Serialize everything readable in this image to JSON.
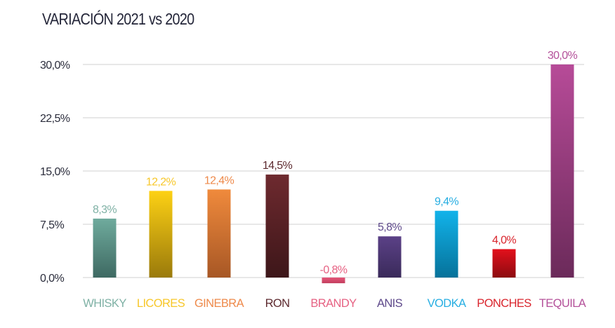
{
  "chart_data": {
    "type": "bar",
    "title": "VARIACIÓN 2021 vs 2020",
    "xlabel": "",
    "ylabel": "",
    "ylim": [
      0,
      30
    ],
    "yticks": [
      0,
      7.5,
      15,
      22.5,
      30
    ],
    "ytick_labels": [
      "0,0%",
      "7,5%",
      "15,0%",
      "22,5%",
      "30,0%"
    ],
    "grid": true,
    "legend": "none",
    "categories": [
      "WHISKY",
      "LICORES",
      "GINEBRA",
      "RON",
      "BRANDY",
      "ANIS",
      "VODKA",
      "PONCHES",
      "TEQUILA"
    ],
    "values": [
      8.3,
      12.2,
      12.4,
      14.5,
      -0.8,
      5.8,
      9.4,
      4.0,
      30.0
    ],
    "data_labels": [
      "8,3%",
      "12,2%",
      "12,4%",
      "14,5%",
      "-0,8%",
      "5,8%",
      "9,4%",
      "4,0%",
      "30,0%"
    ],
    "colors": {
      "top": [
        "#6fab9d",
        "#fdd114",
        "#f08a3c",
        "#6e2a2f",
        "#e5577a",
        "#5b4187",
        "#12b3ea",
        "#e3101c",
        "#b74b98"
      ],
      "bottom": [
        "#3e6962",
        "#9a7a0b",
        "#a75725",
        "#3d1619",
        "#c23c5c",
        "#3a2a5a",
        "#06729a",
        "#8c0b10",
        "#6b2a5a"
      ],
      "label": [
        "#7fb1a5",
        "#f7c72a",
        "#ee8a4b",
        "#5d2a2f",
        "#e66283",
        "#5f4a8b",
        "#27aee2",
        "#d9252d",
        "#b4519a"
      ]
    }
  }
}
